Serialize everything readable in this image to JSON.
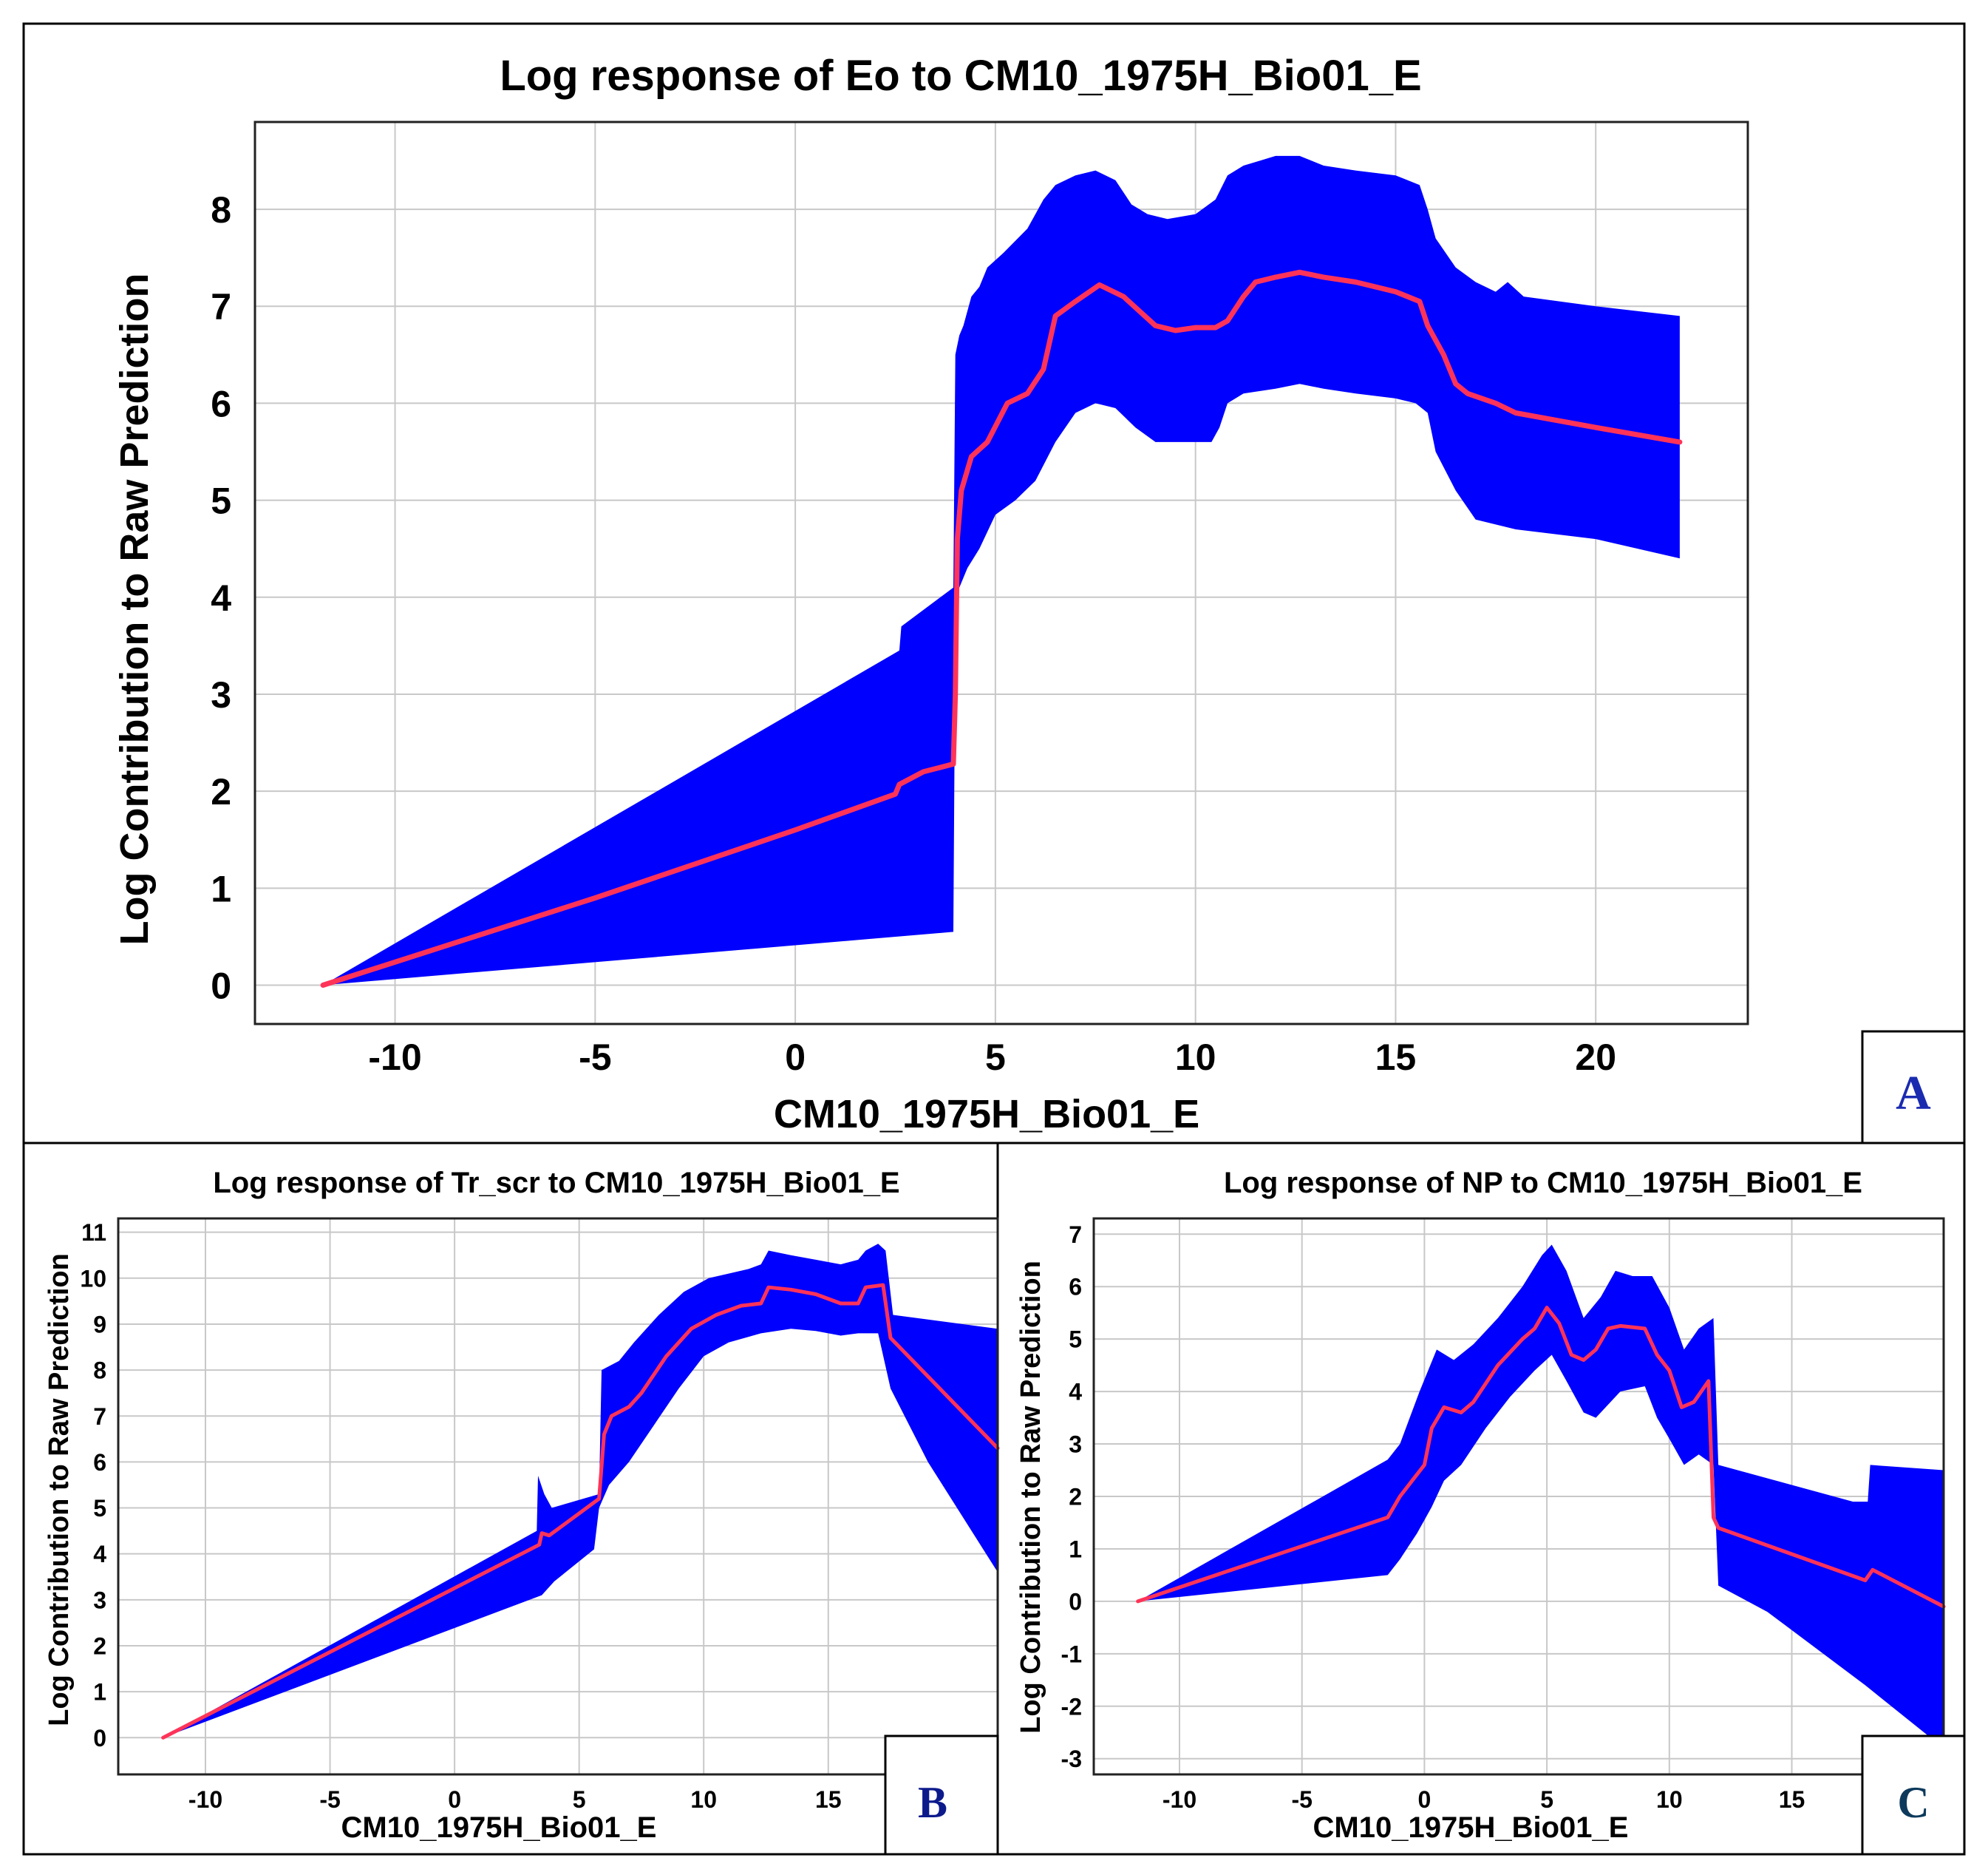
{
  "chart_data": [
    {
      "panel": "A",
      "type": "area",
      "title": "Log response of Eo to CM10_1975H_Bio01_E",
      "xlabel": "CM10_1975H_Bio01_E",
      "ylabel": "Log Contribution to Raw Prediction",
      "xlim": [
        -13.5,
        23.8
      ],
      "ylim": [
        -0.4,
        8.9
      ],
      "xticks": [
        -10,
        -5,
        0,
        5,
        10,
        15,
        20
      ],
      "yticks": [
        0,
        1,
        2,
        3,
        4,
        5,
        6,
        7,
        8
      ],
      "label_color": "#1a2bb0",
      "series": [
        {
          "name": "mean",
          "color": "#ff3358",
          "x": [
            -11.8,
            -5,
            0,
            2.5,
            2.6,
            3.2,
            3.95,
            4.0,
            4.05,
            4.15,
            4.4,
            4.8,
            5.3,
            5.8,
            6.2,
            6.5,
            7.0,
            7.6,
            8.2,
            8.6,
            9.0,
            9.5,
            10.0,
            10.5,
            10.8,
            11.2,
            11.5,
            12.0,
            12.6,
            13.2,
            14.0,
            15.0,
            15.6,
            15.8,
            16.2,
            16.5,
            16.8,
            17.5,
            18.0,
            20.0,
            22.1
          ],
          "y": [
            0.0,
            0.9,
            1.6,
            1.97,
            2.07,
            2.2,
            2.28,
            3.0,
            4.6,
            5.1,
            5.45,
            5.6,
            6.0,
            6.1,
            6.35,
            6.9,
            7.05,
            7.22,
            7.1,
            6.95,
            6.8,
            6.75,
            6.78,
            6.78,
            6.85,
            7.1,
            7.25,
            7.3,
            7.35,
            7.3,
            7.25,
            7.15,
            7.05,
            6.8,
            6.5,
            6.2,
            6.1,
            6.0,
            5.9,
            5.75,
            5.6
          ]
        },
        {
          "name": "upper",
          "color": "#0000ff",
          "x": [
            -11.8,
            2.6,
            2.65,
            3.95,
            4.0,
            4.1,
            4.2,
            4.4,
            4.6,
            4.8,
            5.2,
            5.8,
            6.2,
            6.5,
            7.0,
            7.5,
            8.0,
            8.4,
            8.8,
            9.3,
            10.0,
            10.5,
            10.8,
            11.2,
            11.6,
            12.0,
            12.6,
            13.2,
            14.0,
            15.0,
            15.6,
            15.8,
            16.0,
            16.5,
            17.0,
            17.5,
            17.8,
            18.2,
            20.0,
            22.1
          ],
          "y": [
            0.0,
            3.45,
            3.7,
            4.1,
            6.5,
            6.7,
            6.8,
            7.1,
            7.2,
            7.4,
            7.55,
            7.8,
            8.1,
            8.25,
            8.35,
            8.4,
            8.3,
            8.05,
            7.95,
            7.9,
            7.95,
            8.1,
            8.35,
            8.45,
            8.5,
            8.55,
            8.55,
            8.45,
            8.4,
            8.35,
            8.25,
            8.0,
            7.7,
            7.4,
            7.25,
            7.15,
            7.25,
            7.1,
            7.0,
            6.9
          ]
        },
        {
          "name": "lower",
          "color": "#0000ff",
          "x": [
            -11.8,
            3.95,
            4.0,
            4.1,
            4.3,
            4.6,
            5.0,
            5.5,
            6.0,
            6.5,
            7.0,
            7.5,
            8.0,
            8.5,
            9.0,
            10.0,
            10.4,
            10.6,
            10.8,
            11.2,
            12.0,
            12.6,
            13.2,
            14.0,
            15.0,
            15.5,
            15.8,
            16.0,
            16.5,
            17.0,
            18.0,
            20.0,
            22.1
          ],
          "y": [
            0.0,
            0.55,
            3.7,
            4.1,
            4.3,
            4.5,
            4.85,
            5.0,
            5.2,
            5.6,
            5.9,
            6.0,
            5.95,
            5.75,
            5.6,
            5.6,
            5.6,
            5.75,
            6.0,
            6.1,
            6.15,
            6.2,
            6.15,
            6.1,
            6.05,
            6.0,
            5.9,
            5.5,
            5.1,
            4.8,
            4.7,
            4.6,
            4.4
          ]
        }
      ]
    },
    {
      "panel": "B",
      "type": "area",
      "title": "Log response of Tr_scr to CM10_1975H_Bio01_E",
      "xlabel": "CM10_1975H_Bio01_E",
      "ylabel": "Log Contribution to Raw Prediction",
      "xlim": [
        -13.5,
        21.8
      ],
      "ylim": [
        -0.8,
        11.3
      ],
      "xticks": [
        -10,
        -5,
        0,
        5,
        10,
        15
      ],
      "yticks": [
        0,
        1,
        2,
        3,
        4,
        5,
        6,
        7,
        8,
        9,
        10,
        11
      ],
      "label_color": "#0d1a8c",
      "series": [
        {
          "name": "mean",
          "color": "#ff3358",
          "x": [
            -11.7,
            3.4,
            3.5,
            3.8,
            5.8,
            6.0,
            6.3,
            7.0,
            7.5,
            8.5,
            9.5,
            10.5,
            11.5,
            12.3,
            12.6,
            13.5,
            14.5,
            15.5,
            16.2,
            16.5,
            17.2,
            17.5,
            21.8
          ],
          "y": [
            0.0,
            4.2,
            4.45,
            4.4,
            5.2,
            6.6,
            7.0,
            7.2,
            7.5,
            8.3,
            8.9,
            9.2,
            9.4,
            9.45,
            9.8,
            9.75,
            9.65,
            9.45,
            9.45,
            9.8,
            9.85,
            8.7,
            6.3
          ]
        },
        {
          "name": "upper",
          "color": "#0000ff",
          "x": [
            -11.7,
            3.3,
            3.35,
            3.6,
            3.9,
            5.8,
            5.9,
            6.6,
            7.2,
            8.2,
            9.2,
            10.2,
            11.0,
            11.8,
            12.3,
            12.6,
            13.5,
            14.5,
            15.5,
            16.2,
            16.5,
            17.0,
            17.3,
            17.6,
            21.8
          ],
          "y": [
            0.0,
            4.5,
            5.7,
            5.3,
            5.0,
            5.3,
            8.0,
            8.2,
            8.6,
            9.2,
            9.7,
            10.0,
            10.1,
            10.2,
            10.3,
            10.6,
            10.5,
            10.4,
            10.3,
            10.4,
            10.6,
            10.75,
            10.6,
            9.2,
            8.9
          ]
        },
        {
          "name": "lower",
          "color": "#0000ff",
          "x": [
            -11.7,
            3.5,
            4.0,
            5.6,
            5.8,
            6.2,
            7.0,
            8.0,
            9.0,
            10.0,
            11.0,
            12.3,
            13.5,
            14.5,
            15.5,
            16.2,
            17.0,
            17.5,
            19.0,
            21.8
          ],
          "y": [
            0.0,
            3.1,
            3.4,
            4.1,
            5.0,
            5.5,
            6.0,
            6.8,
            7.6,
            8.3,
            8.6,
            8.8,
            8.9,
            8.85,
            8.75,
            8.8,
            8.8,
            7.6,
            6.0,
            3.6
          ]
        }
      ]
    },
    {
      "panel": "C",
      "type": "area",
      "title": "Log response of NP to CM10_1975H_Bio01_E",
      "xlabel": "CM10_1975H_Bio01_E",
      "ylabel": "Log Contribution to Raw Prediction",
      "xlim": [
        -13.5,
        21.2
      ],
      "ylim": [
        -3.3,
        7.3
      ],
      "xticks": [
        -10,
        -5,
        0,
        5,
        10,
        15
      ],
      "yticks": [
        -3,
        -2,
        -1,
        0,
        1,
        2,
        3,
        4,
        5,
        6,
        7
      ],
      "label_color": "#0d3a5c",
      "series": [
        {
          "name": "mean",
          "color": "#ff3358",
          "x": [
            -11.7,
            -1.5,
            -1.0,
            -0.5,
            0.0,
            0.3,
            0.8,
            1.5,
            2.0,
            3.0,
            4.0,
            4.5,
            5.0,
            5.5,
            6.0,
            6.5,
            7.0,
            7.5,
            8.0,
            9.0,
            9.5,
            10.0,
            10.5,
            11.0,
            11.6,
            11.8,
            12.0,
            18.0,
            18.3,
            21.2
          ],
          "y": [
            0.0,
            1.6,
            2.0,
            2.3,
            2.6,
            3.3,
            3.7,
            3.6,
            3.8,
            4.5,
            5.0,
            5.2,
            5.6,
            5.3,
            4.7,
            4.6,
            4.8,
            5.2,
            5.25,
            5.2,
            4.7,
            4.4,
            3.7,
            3.8,
            4.2,
            1.6,
            1.4,
            0.4,
            0.6,
            -0.1
          ]
        },
        {
          "name": "upper",
          "color": "#0000ff",
          "x": [
            -11.7,
            -1.5,
            -1.0,
            -0.2,
            0.5,
            1.2,
            2.0,
            3.0,
            4.0,
            4.8,
            5.2,
            5.8,
            6.5,
            7.2,
            7.8,
            8.5,
            9.3,
            10.0,
            10.6,
            11.2,
            11.8,
            12.0,
            17.5,
            18.1,
            18.2,
            21.2
          ],
          "y": [
            0.0,
            2.7,
            3.0,
            4.0,
            4.8,
            4.6,
            4.9,
            5.4,
            6.0,
            6.6,
            6.8,
            6.3,
            5.4,
            5.8,
            6.3,
            6.2,
            6.2,
            5.6,
            4.8,
            5.2,
            5.4,
            2.6,
            1.9,
            1.9,
            2.6,
            2.5
          ]
        },
        {
          "name": "lower",
          "color": "#0000ff",
          "x": [
            -11.7,
            -1.5,
            -1.0,
            -0.3,
            0.3,
            0.8,
            1.5,
            2.5,
            3.5,
            4.5,
            5.2,
            5.8,
            6.5,
            7.0,
            8.0,
            9.0,
            9.5,
            10.0,
            10.6,
            11.2,
            11.8,
            12.0,
            14.0,
            16.0,
            18.0,
            21.2
          ],
          "y": [
            0.0,
            0.5,
            0.8,
            1.3,
            1.8,
            2.3,
            2.6,
            3.3,
            3.9,
            4.4,
            4.7,
            4.2,
            3.6,
            3.5,
            4.0,
            4.1,
            3.5,
            3.1,
            2.6,
            2.8,
            2.6,
            0.3,
            -0.2,
            -0.9,
            -1.6,
            -2.8
          ]
        }
      ]
    }
  ]
}
